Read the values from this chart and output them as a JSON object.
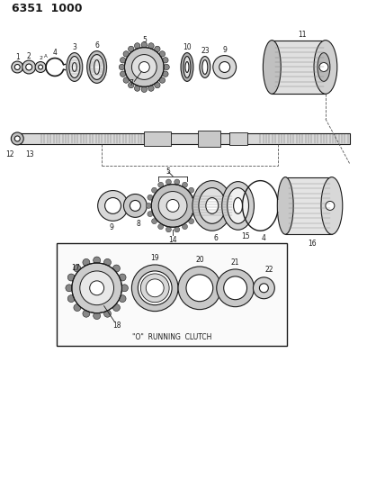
{
  "title": "6351  1000",
  "bg_color": "#ffffff",
  "lc": "#1a1a1a",
  "fig_width": 4.08,
  "fig_height": 5.33,
  "dpi": 100
}
